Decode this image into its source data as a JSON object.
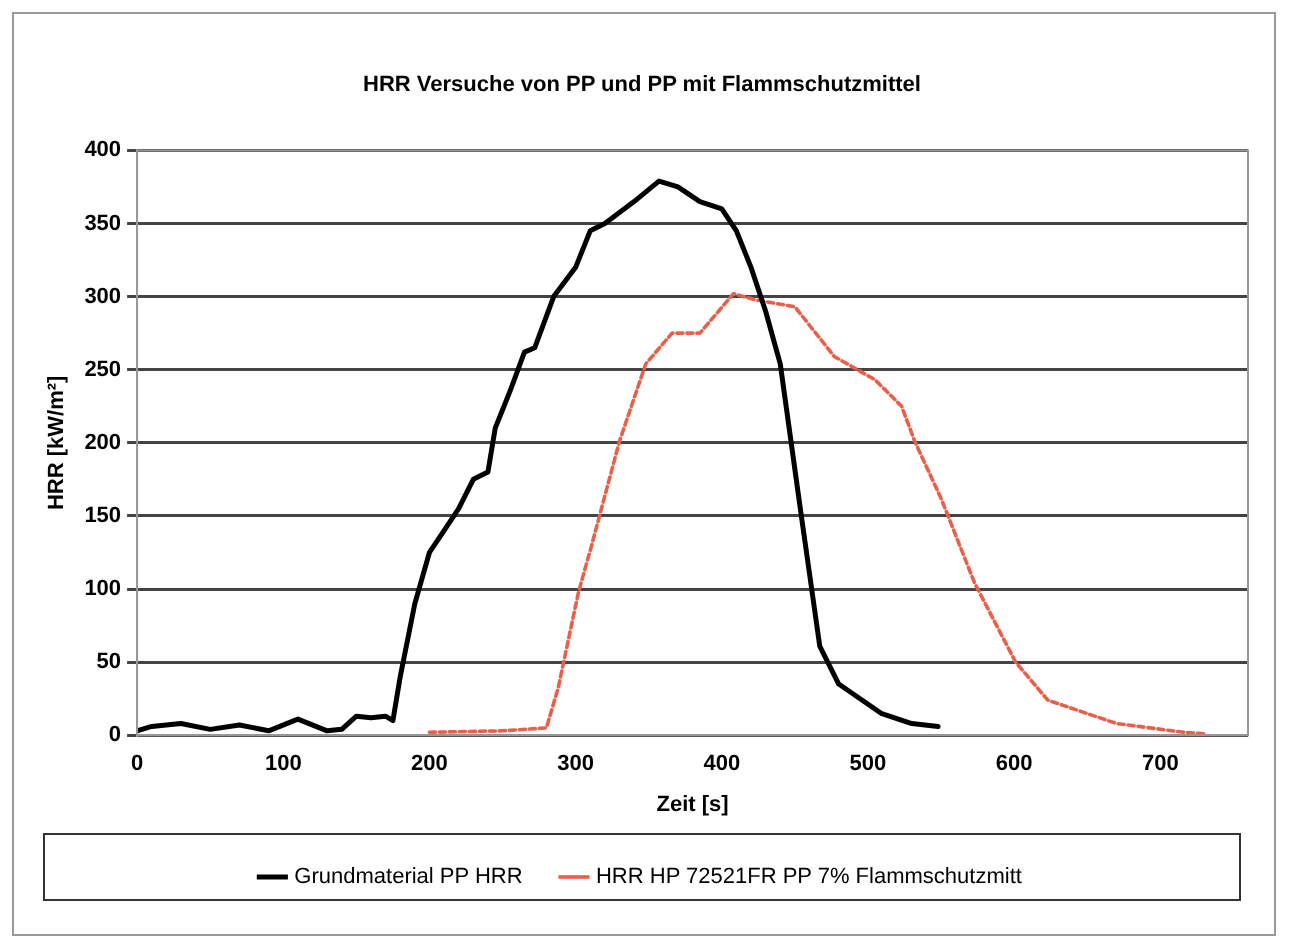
{
  "chart_data": {
    "type": "line",
    "title": "HRR Versuche von PP und PP mit Flammschutzmittel",
    "xlabel": "Zeit [s]",
    "ylabel": "HRR [kW/m²]",
    "xlim": [
      0,
      760
    ],
    "xticks": [
      0,
      100,
      200,
      300,
      400,
      500,
      600,
      700
    ],
    "ylim": [
      0,
      400
    ],
    "yticks": [
      0,
      50,
      100,
      150,
      200,
      250,
      300,
      350,
      400
    ],
    "grid": "y",
    "legend": "bottom",
    "marker": "none",
    "series": [
      {
        "name": "Grundmaterial PP HRR",
        "color": "#000000",
        "line_style": "solid",
        "x": [
          0,
          10,
          30,
          50,
          70,
          90,
          110,
          130,
          140,
          150,
          160,
          170,
          175,
          180,
          190,
          200,
          210,
          220,
          230,
          240,
          245,
          255,
          265,
          272,
          285,
          300,
          310,
          320,
          340,
          357,
          370,
          385,
          400,
          410,
          420,
          430,
          440,
          454,
          467,
          480,
          509,
          530,
          548
        ],
        "values": [
          3,
          6,
          8,
          4,
          7,
          3,
          11,
          3,
          4,
          13,
          12,
          13,
          10,
          40,
          90,
          125,
          140,
          155,
          175,
          180,
          210,
          235,
          262,
          265,
          300,
          320,
          345,
          350,
          365,
          379,
          375,
          365,
          360,
          345,
          320,
          290,
          254,
          153,
          61,
          35,
          15,
          8,
          6
        ]
      },
      {
        "name": "HRR HP 72521FR PP 7% Flammschutzmitt",
        "color": "#e8604c",
        "line_style": "dashed",
        "x": [
          200,
          250,
          280,
          288,
          302,
          311,
          330,
          348,
          366,
          385,
          408,
          422,
          450,
          477,
          505,
          523,
          532,
          550,
          573,
          601,
          623,
          670,
          716,
          730
        ],
        "values": [
          2,
          3,
          5,
          32,
          98,
          130,
          201,
          254,
          275,
          275,
          302,
          298,
          293,
          259,
          243,
          225,
          201,
          162,
          104,
          50,
          24,
          8,
          2,
          1
        ]
      }
    ]
  }
}
